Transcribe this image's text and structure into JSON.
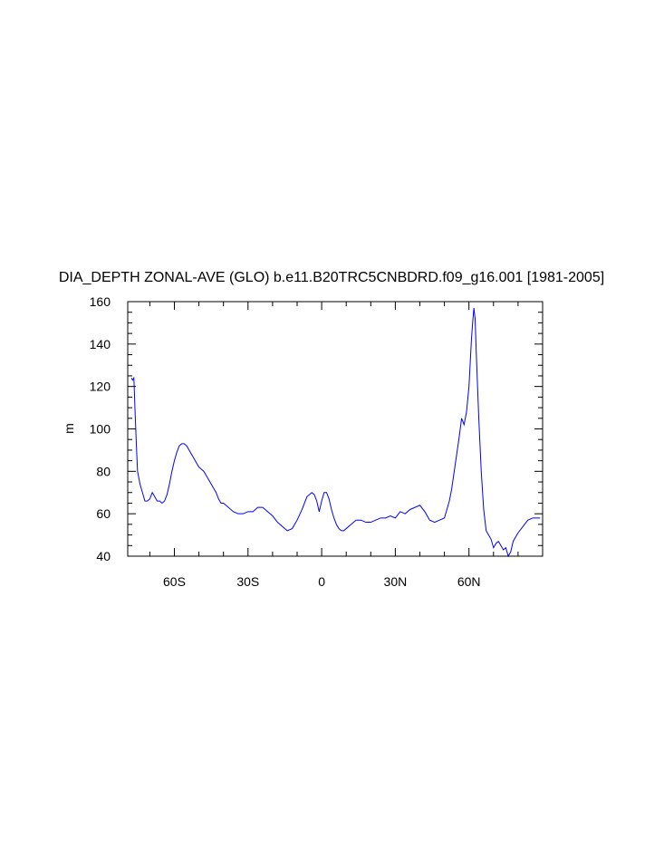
{
  "chart_data": {
    "type": "line",
    "title": "DIA_DEPTH ZONAL-AVE (GLO) b.e11.B20TRC5CNBDRD.f09_g16.001 [1981-2005]",
    "xlabel": "",
    "ylabel": "m",
    "xlim": [
      -79,
      90
    ],
    "ylim": [
      40,
      160
    ],
    "grid": false,
    "line_color": "#0000ff",
    "x_ticks": [
      {
        "value": -60,
        "label": "60S"
      },
      {
        "value": -30,
        "label": "30S"
      },
      {
        "value": 0,
        "label": "0"
      },
      {
        "value": 30,
        "label": "30N"
      },
      {
        "value": 60,
        "label": "60N"
      }
    ],
    "y_ticks": [
      {
        "value": 40,
        "label": "40"
      },
      {
        "value": 60,
        "label": "60"
      },
      {
        "value": 80,
        "label": "80"
      },
      {
        "value": 100,
        "label": "100"
      },
      {
        "value": 120,
        "label": "120"
      },
      {
        "value": 140,
        "label": "140"
      },
      {
        "value": 160,
        "label": "160"
      }
    ],
    "series": [
      {
        "x": [
          -77.5,
          -77,
          -76.5,
          -76,
          -75.5,
          -75,
          -74,
          -73,
          -72,
          -71,
          -70,
          -69,
          -68,
          -67,
          -66,
          -65,
          -64,
          -63,
          -62,
          -61,
          -60,
          -59,
          -58,
          -57,
          -56,
          -55,
          -54,
          -53,
          -52,
          -51,
          -50,
          -49,
          -48,
          -47,
          -46,
          -45,
          -44,
          -43,
          -42,
          -41,
          -40,
          -38,
          -36,
          -34,
          -32,
          -30,
          -28,
          -26,
          -24,
          -22,
          -20,
          -18,
          -16,
          -14,
          -12,
          -10,
          -8,
          -6,
          -4,
          -3,
          -2,
          -1,
          0,
          1,
          2,
          3,
          4,
          5,
          6,
          7,
          8,
          9,
          10,
          12,
          14,
          16,
          18,
          20,
          22,
          24,
          26,
          28,
          30,
          32,
          34,
          36,
          38,
          40,
          42,
          44,
          46,
          48,
          50,
          51,
          52,
          53,
          54,
          55,
          56,
          57,
          58,
          59,
          60,
          61,
          61.5,
          62,
          62.5,
          63,
          64,
          65,
          66,
          67,
          68,
          69,
          70,
          71,
          72,
          73,
          74,
          75,
          76,
          77,
          78,
          80,
          82,
          84,
          86,
          88,
          89
        ],
        "y": [
          124,
          123,
          124,
          108,
          93,
          80,
          74,
          70,
          66,
          66,
          67,
          70,
          68,
          66,
          66,
          65,
          66,
          69,
          74,
          80,
          85,
          89,
          92,
          93,
          93,
          92,
          90,
          88,
          86,
          84,
          82,
          81,
          80,
          78,
          76,
          74,
          72,
          70,
          67,
          65,
          65,
          63,
          61,
          60,
          60,
          61,
          61,
          63,
          63,
          61,
          59,
          56,
          54,
          52,
          53,
          57,
          62,
          68,
          70,
          69,
          66,
          61,
          66,
          70,
          70,
          67,
          62,
          58,
          55,
          53,
          52,
          52,
          53,
          55,
          57,
          57,
          56,
          56,
          57,
          58,
          58,
          59,
          58,
          61,
          60,
          62,
          63,
          64,
          61,
          57,
          56,
          57,
          58,
          62,
          66,
          72,
          80,
          88,
          96,
          105,
          102,
          108,
          120,
          142,
          150,
          157,
          152,
          135,
          105,
          80,
          62,
          52,
          50,
          48,
          44,
          46,
          47,
          45,
          43,
          44,
          40,
          42,
          47,
          51,
          54,
          57,
          58,
          58,
          58
        ]
      }
    ]
  }
}
